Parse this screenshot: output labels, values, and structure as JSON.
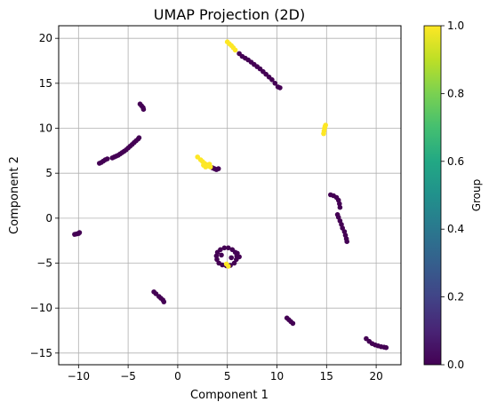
{
  "chart_data": {
    "type": "scatter",
    "title": "UMAP Projection (2D)",
    "xlabel": "Component 1",
    "ylabel": "Component 2",
    "xlim": [
      -12,
      22.5
    ],
    "ylim": [
      -16.3,
      21.4
    ],
    "x_ticks": [
      -10,
      -5,
      0,
      5,
      10,
      15,
      20
    ],
    "y_ticks": [
      -15,
      -10,
      -5,
      0,
      5,
      10,
      15,
      20
    ],
    "grid": true,
    "colormap": "viridis",
    "colorbar": {
      "label": "Group",
      "range": [
        0.0,
        1.0
      ],
      "ticks": [
        "0.0",
        "0.2",
        "0.4",
        "0.6",
        "0.8",
        "1.0"
      ]
    },
    "series": [
      {
        "group": 0,
        "color": "#440154",
        "points": [
          [
            -10.4,
            -1.8
          ],
          [
            -10.2,
            -1.75
          ],
          [
            -10.0,
            -1.7
          ],
          [
            -9.9,
            -1.6
          ],
          [
            -7.9,
            6.1
          ],
          [
            -7.7,
            6.2
          ],
          [
            -7.5,
            6.35
          ],
          [
            -7.3,
            6.5
          ],
          [
            -7.1,
            6.6
          ],
          [
            -6.6,
            6.7
          ],
          [
            -6.4,
            6.8
          ],
          [
            -6.2,
            6.9
          ],
          [
            -6.0,
            7.0
          ],
          [
            -5.8,
            7.15
          ],
          [
            -5.6,
            7.3
          ],
          [
            -5.4,
            7.45
          ],
          [
            -5.2,
            7.6
          ],
          [
            -5.0,
            7.8
          ],
          [
            -4.8,
            8.0
          ],
          [
            -4.6,
            8.2
          ],
          [
            -4.4,
            8.4
          ],
          [
            -4.2,
            8.6
          ],
          [
            -4.0,
            8.8
          ],
          [
            -3.9,
            8.95
          ],
          [
            -3.8,
            12.7
          ],
          [
            -3.65,
            12.5
          ],
          [
            -3.5,
            12.3
          ],
          [
            -3.45,
            12.1
          ],
          [
            -2.4,
            -8.2
          ],
          [
            -2.2,
            -8.4
          ],
          [
            -1.9,
            -8.7
          ],
          [
            -1.7,
            -8.9
          ],
          [
            -1.5,
            -9.1
          ],
          [
            -1.4,
            -9.3
          ],
          [
            3.5,
            5.6
          ],
          [
            3.7,
            5.5
          ],
          [
            3.9,
            5.4
          ],
          [
            4.1,
            5.5
          ],
          [
            4.0,
            -3.8
          ],
          [
            4.3,
            -3.5
          ],
          [
            4.7,
            -3.3
          ],
          [
            5.1,
            -3.3
          ],
          [
            5.5,
            -3.5
          ],
          [
            5.8,
            -3.8
          ],
          [
            5.95,
            -4.2
          ],
          [
            5.9,
            -4.6
          ],
          [
            5.7,
            -5.0
          ],
          [
            5.3,
            -5.25
          ],
          [
            4.9,
            -5.3
          ],
          [
            4.5,
            -5.2
          ],
          [
            4.15,
            -5.0
          ],
          [
            3.95,
            -4.6
          ],
          [
            3.9,
            -4.2
          ],
          [
            4.4,
            -4.1
          ],
          [
            5.4,
            -4.4
          ],
          [
            6.2,
            -4.3
          ],
          [
            6.0,
            -3.9
          ],
          [
            6.2,
            18.3
          ],
          [
            6.5,
            18.0
          ],
          [
            6.8,
            17.8
          ],
          [
            7.1,
            17.6
          ],
          [
            7.4,
            17.35
          ],
          [
            7.7,
            17.1
          ],
          [
            8.0,
            16.85
          ],
          [
            8.3,
            16.6
          ],
          [
            8.6,
            16.3
          ],
          [
            8.9,
            16.0
          ],
          [
            9.2,
            15.7
          ],
          [
            9.5,
            15.4
          ],
          [
            9.8,
            15.0
          ],
          [
            10.1,
            14.6
          ],
          [
            10.3,
            14.5
          ],
          [
            11.0,
            -11.1
          ],
          [
            11.2,
            -11.3
          ],
          [
            11.4,
            -11.5
          ],
          [
            11.6,
            -11.7
          ],
          [
            15.4,
            2.6
          ],
          [
            15.7,
            2.5
          ],
          [
            16.0,
            2.3
          ],
          [
            16.2,
            2.0
          ],
          [
            16.3,
            1.6
          ],
          [
            16.35,
            1.2
          ],
          [
            16.1,
            0.4
          ],
          [
            16.2,
            0.1
          ],
          [
            16.35,
            -0.3
          ],
          [
            16.5,
            -0.7
          ],
          [
            16.6,
            -1.1
          ],
          [
            16.8,
            -1.5
          ],
          [
            16.9,
            -1.9
          ],
          [
            17.0,
            -2.3
          ],
          [
            17.05,
            -2.6
          ],
          [
            19.0,
            -13.4
          ],
          [
            19.3,
            -13.7
          ],
          [
            19.6,
            -13.95
          ],
          [
            19.9,
            -14.1
          ],
          [
            20.2,
            -14.2
          ],
          [
            20.5,
            -14.3
          ],
          [
            20.8,
            -14.35
          ],
          [
            21.0,
            -14.4
          ]
        ]
      },
      {
        "group": 1,
        "color": "#fde725",
        "points": [
          [
            2.0,
            6.8
          ],
          [
            2.3,
            6.5
          ],
          [
            2.5,
            6.3
          ],
          [
            2.7,
            6.1
          ],
          [
            2.9,
            5.95
          ],
          [
            3.1,
            5.8
          ],
          [
            3.3,
            5.7
          ],
          [
            2.6,
            5.9
          ],
          [
            2.8,
            5.7
          ],
          [
            3.2,
            6.0
          ],
          [
            5.0,
            19.6
          ],
          [
            5.2,
            19.4
          ],
          [
            5.4,
            19.2
          ],
          [
            5.6,
            18.95
          ],
          [
            5.8,
            18.7
          ],
          [
            14.7,
            9.4
          ],
          [
            14.75,
            9.7
          ],
          [
            14.8,
            10.0
          ],
          [
            14.85,
            10.2
          ],
          [
            14.9,
            10.35
          ],
          [
            4.9,
            -5.1
          ],
          [
            5.1,
            -5.35
          ]
        ]
      }
    ]
  }
}
